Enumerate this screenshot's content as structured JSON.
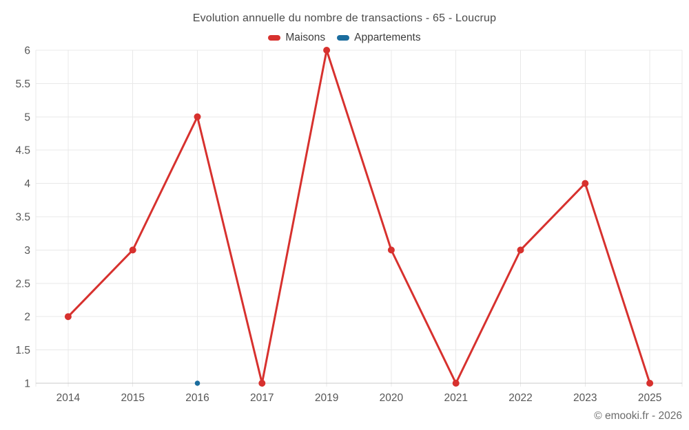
{
  "title": "Evolution annuelle du nombre de transactions - 65 - Loucrup",
  "footer": {
    "copyright": "© emooki.fr - 2026"
  },
  "colors": {
    "maisons": "#d7312e",
    "appartements": "#1b6d9e",
    "grid": "#e8e8e8",
    "axis": "#c9c9c9",
    "tick_label": "#565656"
  },
  "chart_data": {
    "type": "line",
    "title": "Evolution annuelle du nombre de transactions - 65 - Loucrup",
    "categories": [
      "2014",
      "2015",
      "2016",
      "2017",
      "2019",
      "2020",
      "2021",
      "2022",
      "2023",
      "2025"
    ],
    "series": [
      {
        "name": "Maisons",
        "color": "#d7312e",
        "point_radius": 5,
        "line_width": 3,
        "values": [
          2,
          3,
          5,
          1,
          6,
          3,
          1,
          3,
          4,
          1
        ]
      },
      {
        "name": "Appartements",
        "color": "#1b6d9e",
        "point_radius": 3.8,
        "line_width": 3,
        "values": [
          null,
          null,
          1,
          null,
          null,
          null,
          null,
          null,
          null,
          null
        ]
      }
    ],
    "xlabel": "",
    "ylabel": "",
    "ylim": [
      1,
      6
    ],
    "ytick_step": 0.5,
    "grid": true,
    "legend_position": "top"
  }
}
